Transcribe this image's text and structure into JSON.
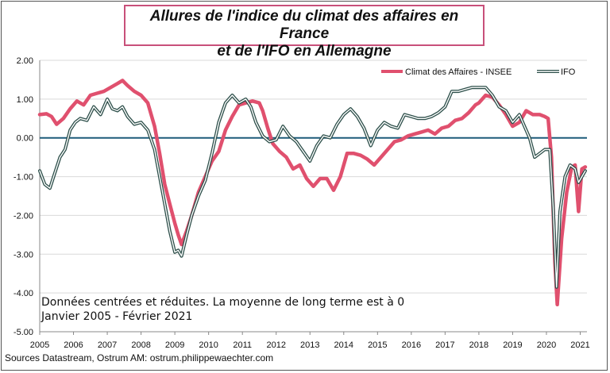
{
  "title": {
    "line1": "Allures de l'indice du climat des affaires en France",
    "line2": "et de l'IFO en Allemagne"
  },
  "note": {
    "line1": "Données centrées et réduites. La moyenne de long terme est à 0",
    "line2": "Janvier 2005 - Février 2021"
  },
  "source": "Sources Datastream, Ostrum AM: ostrum.philippewaechter.com",
  "chart_data": {
    "type": "line",
    "x_ticks": [
      "2005",
      "2006",
      "2007",
      "2008",
      "2009",
      "2010",
      "2011",
      "2012",
      "2013",
      "2014",
      "2015",
      "2016",
      "2017",
      "2018",
      "2019",
      "2020",
      "2021"
    ],
    "y_ticks": [
      "2.00",
      "1.00",
      "0.00",
      "-1.00",
      "-2.00",
      "-3.00",
      "-4.00",
      "-5.00"
    ],
    "ylim": [
      -5,
      2
    ],
    "xlim": [
      2005.0,
      2021.2
    ],
    "legend_position": "top-right",
    "zero_line": true,
    "colors": {
      "insee": "#e0506e",
      "ifo_outer": "#2d4f4a",
      "ifo_inner": "#ffffff",
      "zero": "#1e5b7a"
    },
    "series": [
      {
        "name": "Climat des Affaires - INSEE",
        "x": [
          2005.0,
          2005.2,
          2005.35,
          2005.5,
          2005.7,
          2005.9,
          2006.1,
          2006.3,
          2006.5,
          2006.7,
          2006.9,
          2007.1,
          2007.3,
          2007.45,
          2007.6,
          2007.8,
          2008.0,
          2008.2,
          2008.4,
          2008.55,
          2008.7,
          2008.85,
          2009.0,
          2009.1,
          2009.2,
          2009.35,
          2009.5,
          2009.7,
          2009.9,
          2010.1,
          2010.3,
          2010.5,
          2010.7,
          2010.9,
          2011.1,
          2011.3,
          2011.5,
          2011.6,
          2011.75,
          2011.9,
          2012.1,
          2012.3,
          2012.5,
          2012.7,
          2012.9,
          2013.1,
          2013.3,
          2013.5,
          2013.7,
          2013.9,
          2014.1,
          2014.3,
          2014.5,
          2014.7,
          2014.9,
          2015.1,
          2015.3,
          2015.5,
          2015.7,
          2015.9,
          2016.1,
          2016.3,
          2016.5,
          2016.7,
          2016.9,
          2017.1,
          2017.3,
          2017.5,
          2017.7,
          2017.9,
          2018.0,
          2018.2,
          2018.4,
          2018.6,
          2018.8,
          2019.0,
          2019.2,
          2019.4,
          2019.6,
          2019.8,
          2019.95,
          2020.05,
          2020.15,
          2020.25,
          2020.32,
          2020.45,
          2020.6,
          2020.75,
          2020.85,
          2020.9,
          2020.95,
          2021.05,
          2021.15
        ],
        "values": [
          0.6,
          0.62,
          0.55,
          0.35,
          0.5,
          0.75,
          0.95,
          0.85,
          1.1,
          1.15,
          1.2,
          1.3,
          1.4,
          1.48,
          1.35,
          1.2,
          1.1,
          0.9,
          0.3,
          -0.4,
          -1.2,
          -1.7,
          -2.2,
          -2.5,
          -2.75,
          -2.4,
          -2.0,
          -1.4,
          -1.0,
          -0.6,
          -0.35,
          0.2,
          0.55,
          0.85,
          0.9,
          0.95,
          0.9,
          0.7,
          0.25,
          -0.15,
          -0.35,
          -0.5,
          -0.8,
          -0.7,
          -1.05,
          -1.25,
          -1.05,
          -1.05,
          -1.35,
          -1.0,
          -0.4,
          -0.4,
          -0.45,
          -0.55,
          -0.7,
          -0.5,
          -0.3,
          -0.1,
          -0.05,
          0.05,
          0.1,
          0.15,
          0.2,
          0.1,
          0.25,
          0.3,
          0.45,
          0.5,
          0.65,
          0.85,
          0.9,
          1.1,
          1.05,
          0.85,
          0.6,
          0.3,
          0.4,
          0.7,
          0.6,
          0.6,
          0.55,
          0.5,
          -0.5,
          -3.2,
          -4.3,
          -2.6,
          -1.4,
          -0.75,
          -0.7,
          -1.3,
          -1.9,
          -0.8,
          -0.75
        ]
      },
      {
        "name": "IFO",
        "x": [
          2005.0,
          2005.15,
          2005.3,
          2005.45,
          2005.6,
          2005.75,
          2005.9,
          2006.05,
          2006.2,
          2006.4,
          2006.6,
          2006.8,
          2007.0,
          2007.15,
          2007.3,
          2007.45,
          2007.6,
          2007.8,
          2008.0,
          2008.2,
          2008.4,
          2008.55,
          2008.7,
          2008.85,
          2009.0,
          2009.1,
          2009.2,
          2009.35,
          2009.5,
          2009.7,
          2009.9,
          2010.1,
          2010.3,
          2010.5,
          2010.7,
          2010.9,
          2011.1,
          2011.25,
          2011.4,
          2011.6,
          2011.8,
          2012.0,
          2012.2,
          2012.4,
          2012.6,
          2012.8,
          2013.0,
          2013.2,
          2013.4,
          2013.6,
          2013.8,
          2014.0,
          2014.2,
          2014.4,
          2014.6,
          2014.8,
          2015.0,
          2015.2,
          2015.4,
          2015.6,
          2015.8,
          2016.0,
          2016.2,
          2016.4,
          2016.6,
          2016.8,
          2017.0,
          2017.2,
          2017.4,
          2017.6,
          2017.8,
          2018.0,
          2018.2,
          2018.4,
          2018.6,
          2018.8,
          2019.0,
          2019.2,
          2019.35,
          2019.5,
          2019.65,
          2019.8,
          2019.95,
          2020.1,
          2020.2,
          2020.3,
          2020.4,
          2020.55,
          2020.7,
          2020.85,
          2020.95,
          2021.05,
          2021.15
        ],
        "values": [
          -0.85,
          -1.2,
          -1.3,
          -0.9,
          -0.5,
          -0.3,
          0.2,
          0.4,
          0.5,
          0.45,
          0.8,
          0.6,
          1.0,
          0.75,
          0.7,
          0.8,
          0.55,
          0.35,
          0.4,
          0.2,
          -0.3,
          -1.0,
          -1.7,
          -2.4,
          -2.95,
          -2.9,
          -3.05,
          -2.5,
          -2.0,
          -1.5,
          -1.1,
          -0.4,
          0.4,
          0.9,
          1.1,
          0.9,
          1.0,
          0.8,
          0.4,
          0.05,
          -0.1,
          -0.05,
          0.3,
          0.05,
          -0.1,
          -0.35,
          -0.6,
          -0.2,
          0.05,
          0.0,
          0.35,
          0.6,
          0.75,
          0.55,
          0.25,
          -0.2,
          0.2,
          0.4,
          0.3,
          0.25,
          0.6,
          0.55,
          0.5,
          0.5,
          0.55,
          0.65,
          0.8,
          1.2,
          1.2,
          1.25,
          1.3,
          1.3,
          1.3,
          1.1,
          0.8,
          0.7,
          0.4,
          0.6,
          0.3,
          0.0,
          -0.5,
          -0.4,
          -0.3,
          -0.3,
          -1.8,
          -3.85,
          -1.9,
          -1.0,
          -0.7,
          -0.8,
          -1.15,
          -1.0,
          -0.85
        ]
      }
    ]
  }
}
